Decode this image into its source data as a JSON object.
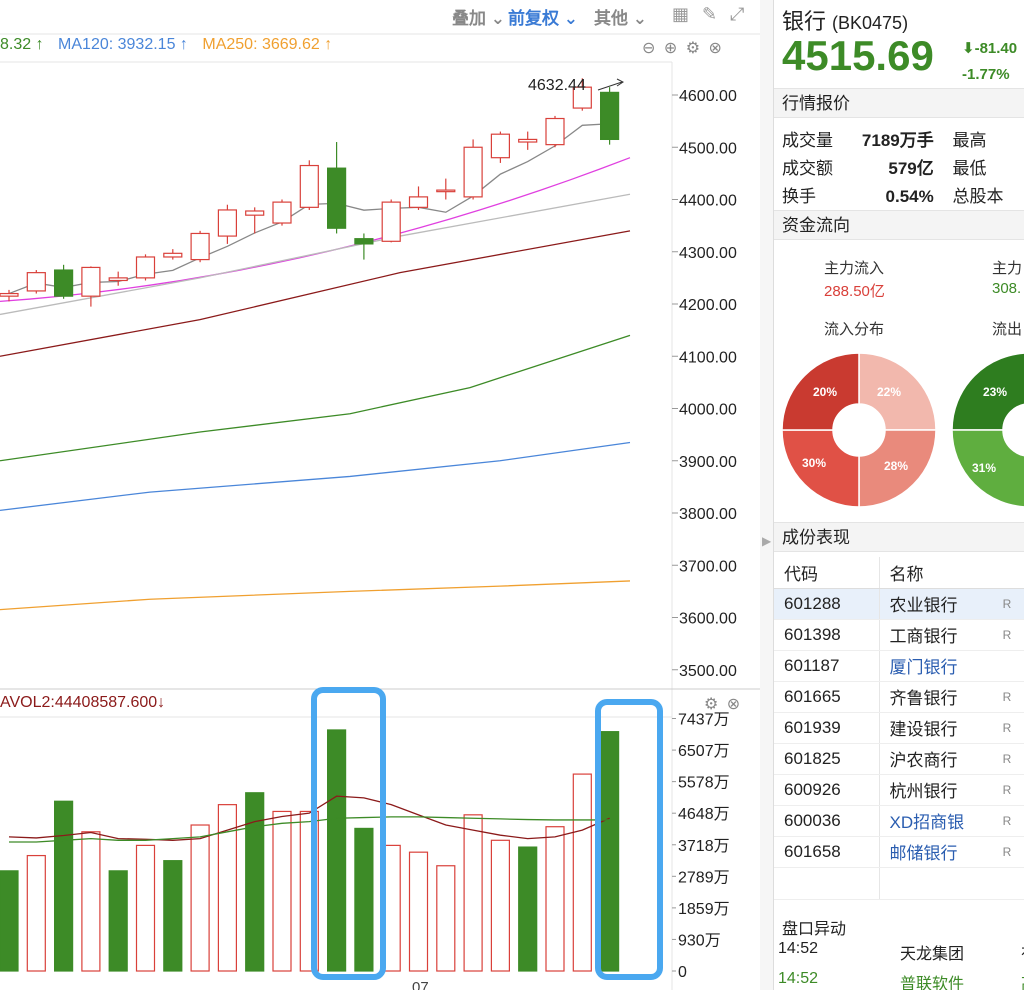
{
  "toolbar": {
    "overlay_label": "叠加",
    "adjust_label": "前复权",
    "other_label": "其他"
  },
  "ma_header": {
    "ma_partial": "8.32 ↑",
    "ma120": "MA120: 3932.15 ↑",
    "ma250": "MA250: 3669.62 ↑"
  },
  "vol_header": "AVOL2:44408587.600↓",
  "price_axis": [
    "4600.00",
    "4500.00",
    "4400.00",
    "4300.00",
    "4200.00",
    "4100.00",
    "4000.00",
    "3900.00",
    "3800.00",
    "3700.00",
    "3600.00",
    "3500.00"
  ],
  "vol_axis": [
    "7437万",
    "6507万",
    "5578万",
    "4648万",
    "3718万",
    "2789万",
    "1859万",
    "930万",
    "0"
  ],
  "max_label": "4632.44",
  "date_label": "07",
  "colors": {
    "up": "#d9403a",
    "down": "#3d8b27",
    "ma5": "#888888",
    "ma10": "#e040e0",
    "ma20": "#bbbbbb",
    "ma30": "#8b1a1a",
    "ma60": "#3d8b27",
    "ma120": "#4a86d9",
    "ma250": "#f0a030",
    "highlight": "#4aa8f0"
  },
  "chart_data": {
    "type": "candlestick",
    "candles": [
      {
        "o": 4215,
        "c": 4220,
        "h": 4227,
        "l": 4205
      },
      {
        "o": 4225,
        "c": 4260,
        "h": 4265,
        "l": 4220
      },
      {
        "o": 4265,
        "c": 4215,
        "h": 4275,
        "l": 4210
      },
      {
        "o": 4215,
        "c": 4270,
        "h": 4272,
        "l": 4195
      },
      {
        "o": 4245,
        "c": 4250,
        "h": 4262,
        "l": 4235
      },
      {
        "o": 4250,
        "c": 4290,
        "h": 4295,
        "l": 4245
      },
      {
        "o": 4290,
        "c": 4297,
        "h": 4305,
        "l": 4285
      },
      {
        "o": 4285,
        "c": 4335,
        "h": 4340,
        "l": 4280
      },
      {
        "o": 4330,
        "c": 4380,
        "h": 4390,
        "l": 4315
      },
      {
        "o": 4370,
        "c": 4378,
        "h": 4385,
        "l": 4335
      },
      {
        "o": 4355,
        "c": 4395,
        "h": 4400,
        "l": 4350
      },
      {
        "o": 4385,
        "c": 4465,
        "h": 4475,
        "l": 4380
      },
      {
        "o": 4460,
        "c": 4345,
        "h": 4510,
        "l": 4335
      },
      {
        "o": 4325,
        "c": 4315,
        "h": 4335,
        "l": 4285
      },
      {
        "o": 4320,
        "c": 4395,
        "h": 4400,
        "l": 4318
      },
      {
        "o": 4385,
        "c": 4405,
        "h": 4425,
        "l": 4380
      },
      {
        "o": 4415,
        "c": 4418,
        "h": 4440,
        "l": 4400
      },
      {
        "o": 4405,
        "c": 4500,
        "h": 4515,
        "l": 4400
      },
      {
        "o": 4480,
        "c": 4525,
        "h": 4530,
        "l": 4470
      },
      {
        "o": 4510,
        "c": 4515,
        "h": 4530,
        "l": 4495
      },
      {
        "o": 4505,
        "c": 4555,
        "h": 4560,
        "l": 4500
      },
      {
        "o": 4575,
        "c": 4615,
        "h": 4632,
        "l": 4570
      },
      {
        "o": 4605,
        "c": 4515,
        "h": 4615,
        "l": 4505
      }
    ],
    "volume": [
      {
        "v": 2950,
        "up": false
      },
      {
        "v": 3400,
        "up": true
      },
      {
        "v": 5000,
        "up": false
      },
      {
        "v": 4100,
        "up": true
      },
      {
        "v": 2950,
        "up": false
      },
      {
        "v": 3700,
        "up": true
      },
      {
        "v": 3250,
        "up": false
      },
      {
        "v": 4300,
        "up": true
      },
      {
        "v": 4900,
        "up": true
      },
      {
        "v": 5250,
        "up": false
      },
      {
        "v": 4700,
        "up": true
      },
      {
        "v": 4700,
        "up": true
      },
      {
        "v": 7100,
        "up": false
      },
      {
        "v": 4200,
        "up": false
      },
      {
        "v": 3700,
        "up": true
      },
      {
        "v": 3500,
        "up": true
      },
      {
        "v": 3100,
        "up": true
      },
      {
        "v": 4600,
        "up": true
      },
      {
        "v": 3850,
        "up": true
      },
      {
        "v": 3650,
        "up": false
      },
      {
        "v": 4250,
        "up": true
      },
      {
        "v": 5800,
        "up": true
      },
      {
        "v": 7050,
        "up": false
      }
    ],
    "vol_ma": [
      3950,
      3920,
      3990,
      4080,
      3900,
      3880,
      3850,
      3900,
      4150,
      4400,
      4550,
      4650,
      5150,
      5100,
      4900,
      4600,
      4300,
      4150,
      4000,
      3900,
      3950,
      4150,
      4500
    ],
    "vol_ma2": [
      3800,
      3800,
      3850,
      3900,
      3850,
      3850,
      3900,
      3950,
      4100,
      4250,
      4350,
      4400,
      4500,
      4520,
      4540,
      4540,
      4520,
      4500,
      4480,
      4460,
      4450,
      4450,
      4450
    ]
  },
  "sidebar": {
    "name": "银行",
    "code": "(BK0475)",
    "price": "4515.69",
    "change": "-81.40",
    "change_pct": "-1.77%",
    "quote_title": "行情报价",
    "quote": {
      "vol_label": "成交量",
      "vol": "7189万手",
      "high_label": "最高",
      "amt_label": "成交额",
      "amt": "579亿",
      "low_label": "最低",
      "turn_label": "换手",
      "turn": "0.54%",
      "cap_label": "总股本"
    },
    "flow_title": "资金流向",
    "flow": {
      "in_label": "主力流入",
      "in_value": "288.50亿",
      "out_label": "主力",
      "out_value": "308.",
      "in_dist": "流入分布",
      "out_dist": "流出",
      "in_pcts": [
        "20%",
        "22%",
        "28%",
        "30%"
      ],
      "out_pcts": [
        "23%",
        "31%"
      ]
    },
    "components_title": "成份表现",
    "components_header": {
      "code": "代码",
      "name": "名称"
    },
    "components": [
      {
        "code": "601288",
        "name": "农业银行",
        "r": "R"
      },
      {
        "code": "601398",
        "name": "工商银行",
        "r": "R"
      },
      {
        "code": "601187",
        "name": "厦门银行",
        "r": ""
      },
      {
        "code": "601665",
        "name": "齐鲁银行",
        "r": "R"
      },
      {
        "code": "601939",
        "name": "建设银行",
        "r": "R"
      },
      {
        "code": "601825",
        "name": "沪农商行",
        "r": "R"
      },
      {
        "code": "600926",
        "name": "杭州银行",
        "r": "R"
      },
      {
        "code": "600036",
        "name": "XD招商银",
        "r": "R"
      },
      {
        "code": "601658",
        "name": "邮储银行",
        "r": "R"
      }
    ],
    "changes_title": "盘口异动",
    "changes": [
      {
        "time": "14:52",
        "name": "天龙集团",
        "extra": "有"
      },
      {
        "time": "14:52",
        "name": "普联软件",
        "extra": "高"
      }
    ]
  }
}
